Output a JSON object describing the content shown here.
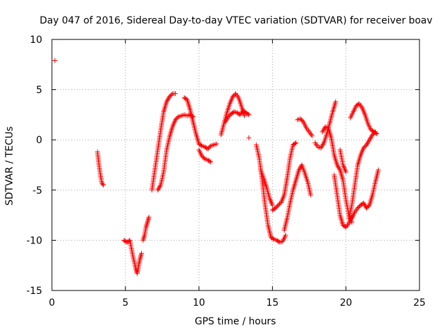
{
  "chart_data": {
    "type": "scatter",
    "title": "Day 047 of 2016, Sidereal Day-to-day VTEC variation (SDTVAR) for receiver boav",
    "xlabel": "GPS time / hours",
    "ylabel": "SDTVAR / TECUs",
    "xlim": [
      0,
      25
    ],
    "ylim": [
      -15,
      10
    ],
    "xticks": [
      0,
      5,
      10,
      15,
      20,
      25
    ],
    "yticks": [
      -15,
      -10,
      -5,
      0,
      5,
      10
    ],
    "xtick_labels": [
      "0",
      "5",
      "10",
      "15",
      "20",
      "25"
    ],
    "ytick_labels": [
      "-15",
      "-10",
      "-5",
      "0",
      "5",
      "10"
    ],
    "grid": true,
    "marker": "+",
    "color": "#ff0000",
    "series": [
      {
        "name": "s0",
        "x": [
          0.2
        ],
        "y": [
          7.9
        ]
      },
      {
        "name": "s1",
        "x": [
          3.1,
          3.2,
          3.3,
          3.4,
          3.5
        ],
        "y": [
          -1.2,
          -2.5,
          -3.5,
          -4.3,
          -4.5
        ]
      },
      {
        "name": "s2",
        "x": [
          4.9,
          5.1,
          5.3,
          5.5,
          5.7,
          5.8,
          5.9,
          6.0,
          6.1
        ],
        "y": [
          -10.0,
          -10.2,
          -10.0,
          -11.5,
          -12.8,
          -13.3,
          -12.5,
          -11.8,
          -11.3
        ]
      },
      {
        "name": "s3",
        "x": [
          6.2,
          6.3,
          6.4,
          6.5,
          6.6
        ],
        "y": [
          -10.0,
          -9.5,
          -8.7,
          -8.2,
          -7.7
        ]
      },
      {
        "name": "s4",
        "x": [
          6.8,
          7.0,
          7.2,
          7.4,
          7.6,
          7.8,
          8.0,
          8.2,
          8.4
        ],
        "y": [
          -5.0,
          -3.0,
          -1.0,
          1.0,
          2.8,
          3.8,
          4.3,
          4.6,
          4.6
        ]
      },
      {
        "name": "s5",
        "x": [
          7.2,
          7.4,
          7.6,
          7.8,
          8.0,
          8.2,
          8.4,
          8.6,
          8.8,
          9.0,
          9.2,
          9.4,
          9.6
        ],
        "y": [
          -5.0,
          -4.5,
          -3.2,
          -1.0,
          0.3,
          1.3,
          2.0,
          2.3,
          2.4,
          2.5,
          2.4,
          2.5,
          2.3
        ]
      },
      {
        "name": "s6",
        "x": [
          9.0,
          9.2,
          9.4,
          9.6,
          9.8,
          10.0,
          10.2,
          10.4,
          10.6,
          10.8,
          11.0,
          11.2
        ],
        "y": [
          4.2,
          4.0,
          3.0,
          1.8,
          0.6,
          -0.4,
          -0.6,
          -0.7,
          -0.9,
          -0.6,
          -0.5,
          -0.4
        ]
      },
      {
        "name": "s7",
        "x": [
          10.0,
          10.2,
          10.4,
          10.6,
          10.8
        ],
        "y": [
          -1.0,
          -1.6,
          -1.9,
          -2.0,
          -2.2
        ]
      },
      {
        "name": "s8",
        "x": [
          11.5,
          11.7,
          11.9,
          12.1,
          12.3,
          12.5,
          12.7,
          12.9,
          13.1
        ],
        "y": [
          0.5,
          1.6,
          2.7,
          3.6,
          4.3,
          4.6,
          4.2,
          3.3,
          2.4
        ]
      },
      {
        "name": "s9",
        "x": [
          11.8,
          12.0,
          12.2,
          12.4,
          12.6,
          12.8,
          13.0,
          13.2,
          13.4
        ],
        "y": [
          1.8,
          2.3,
          2.6,
          2.8,
          2.7,
          2.5,
          2.9,
          2.7,
          2.5
        ]
      },
      {
        "name": "s10",
        "x": [
          13.4
        ],
        "y": [
          0.2
        ]
      },
      {
        "name": "s11",
        "x": [
          13.9,
          14.1,
          14.3,
          14.5,
          14.7,
          14.9,
          15.1,
          15.3,
          15.5,
          15.7,
          15.9
        ],
        "y": [
          -0.5,
          -1.8,
          -4.0,
          -6.5,
          -8.5,
          -9.7,
          -9.9,
          -10.0,
          -10.2,
          -10.1,
          -9.5
        ]
      },
      {
        "name": "s12",
        "x": [
          14.2,
          14.4,
          14.6,
          14.8,
          15.0
        ],
        "y": [
          -3.0,
          -3.8,
          -4.7,
          -5.8,
          -6.5
        ]
      },
      {
        "name": "s13",
        "x": [
          15.0,
          15.2,
          15.4,
          15.6,
          15.8,
          16.0,
          16.2,
          16.4,
          16.6
        ],
        "y": [
          -7.0,
          -6.8,
          -6.5,
          -6.2,
          -5.5,
          -3.8,
          -1.8,
          -0.5,
          -0.3
        ]
      },
      {
        "name": "s14",
        "x": [
          15.8,
          16.0,
          16.2,
          16.4,
          16.6,
          16.8,
          17.0,
          17.2,
          17.4,
          17.6
        ],
        "y": [
          -9.0,
          -7.8,
          -6.3,
          -5.0,
          -4.0,
          -3.0,
          -2.5,
          -3.3,
          -4.2,
          -5.5
        ]
      },
      {
        "name": "s15",
        "x": [
          16.7,
          16.9,
          17.1,
          17.3,
          17.5,
          17.7
        ],
        "y": [
          2.0,
          2.1,
          1.8,
          1.2,
          0.8,
          0.4
        ]
      },
      {
        "name": "s16",
        "x": [
          17.9,
          18.1,
          18.3,
          18.5,
          18.7,
          18.9,
          19.1,
          19.3
        ],
        "y": [
          -0.3,
          -0.7,
          -0.8,
          -0.3,
          0.6,
          1.7,
          2.8,
          3.8
        ]
      },
      {
        "name": "s17",
        "x": [
          18.4,
          18.6,
          18.8,
          19.0,
          19.2,
          19.4,
          19.6,
          19.8,
          20.0,
          20.2,
          20.4
        ],
        "y": [
          0.8,
          1.3,
          1.2,
          0.2,
          -1.5,
          -2.5,
          -3.0,
          -4.0,
          -6.0,
          -7.5,
          -8.2
        ]
      },
      {
        "name": "s18",
        "x": [
          19.2,
          19.4,
          19.6,
          19.8,
          20.0,
          20.2,
          20.4
        ],
        "y": [
          -3.5,
          -5.5,
          -7.5,
          -8.5,
          -8.7,
          -8.3,
          -7.6
        ]
      },
      {
        "name": "s19",
        "x": [
          19.6,
          19.8,
          20.0
        ],
        "y": [
          -1.0,
          -2.5,
          -3.2
        ]
      },
      {
        "name": "s20",
        "x": [
          20.2,
          20.4,
          20.6,
          20.8,
          21.0,
          21.2,
          21.4,
          21.6,
          21.8,
          22.0
        ],
        "y": [
          -7.8,
          -6.5,
          -4.5,
          -2.5,
          -1.5,
          -0.8,
          -0.5,
          0.0,
          0.5,
          0.8
        ]
      },
      {
        "name": "s21",
        "x": [
          20.3,
          20.5,
          20.7,
          20.9,
          21.1,
          21.3,
          21.5,
          21.7,
          21.9,
          22.1
        ],
        "y": [
          2.2,
          2.8,
          3.4,
          3.6,
          3.2,
          2.5,
          1.6,
          1.0,
          0.8,
          0.6
        ]
      },
      {
        "name": "s22",
        "x": [
          20.4,
          20.6,
          20.8,
          21.0,
          21.2,
          21.4,
          21.6,
          21.8,
          22.0,
          22.2
        ],
        "y": [
          -7.8,
          -7.2,
          -6.8,
          -6.5,
          -6.3,
          -6.8,
          -6.5,
          -5.5,
          -4.2,
          -3.0
        ]
      }
    ]
  }
}
